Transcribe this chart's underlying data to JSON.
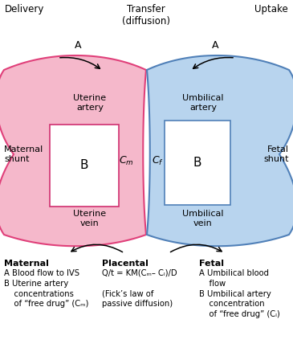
{
  "bg_color": "#ffffff",
  "pink_color": "#F5B8CB",
  "pink_border": "#E0407A",
  "blue_color": "#B8D4EE",
  "blue_border": "#5080B8",
  "white_color": "#ffffff",
  "pink_box_border": "#D03070",
  "blue_box_border": "#5080B8",
  "delivery_label": "Delivery",
  "transfer_label": "Transfer\n(diffusion)",
  "uptake_label": "Uptake",
  "maternal_shunt_label": "Maternal\nshunt",
  "fetal_shunt_label": "Fetal\nshunt",
  "uterine_artery_label": "Uterine\nartery",
  "uterine_vein_label": "Uterine\nvein",
  "umbilical_artery_label": "Umbilical\nartery",
  "umbilical_vein_label": "Umbilical\nvein",
  "pink_box_label": "B",
  "blue_box_label": "B",
  "cm_label": "Cₘ",
  "cf_label": "Cₗ",
  "maternal_header": "Maternal",
  "maternal_text": "A Blood flow to IVS\nB Uterine artery\n    concentrations\n    of “free drug” (Cₘ)",
  "placental_header": "Placental",
  "placental_text": "Q/t = KM(Cₘ– Cₗ)/D\n\n(Fick’s law of\npassive diffusion)",
  "fetal_header": "Fetal",
  "fetal_text": "A Umbilical blood\n    flow\nB Umbilical artery\n    concentration\n    of “free drug” (Cₗ)"
}
